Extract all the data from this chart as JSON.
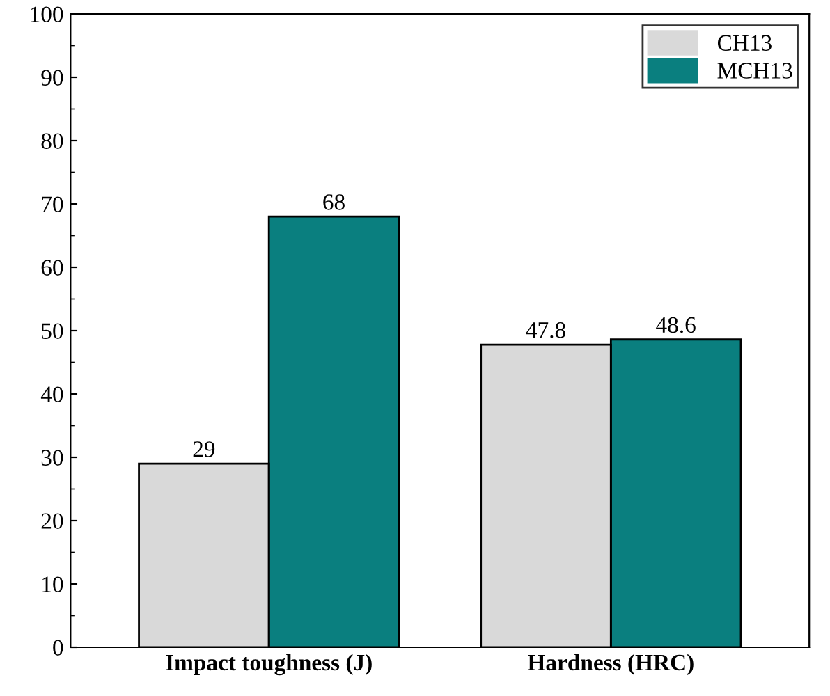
{
  "chart_data": {
    "type": "bar",
    "categories": [
      "Impact toughness (J)",
      "Hardness (HRC)"
    ],
    "series": [
      {
        "name": "CH13",
        "color": "#d9d9d9",
        "values": [
          29,
          47.8
        ]
      },
      {
        "name": "MCH13",
        "color": "#0a7f7f",
        "values": [
          68,
          48.6
        ]
      }
    ],
    "ylim": [
      0,
      100
    ],
    "yticks": [
      0,
      10,
      20,
      30,
      40,
      50,
      60,
      70,
      80,
      90,
      100
    ],
    "data_labels": true,
    "legend": "top right",
    "grid": false
  }
}
